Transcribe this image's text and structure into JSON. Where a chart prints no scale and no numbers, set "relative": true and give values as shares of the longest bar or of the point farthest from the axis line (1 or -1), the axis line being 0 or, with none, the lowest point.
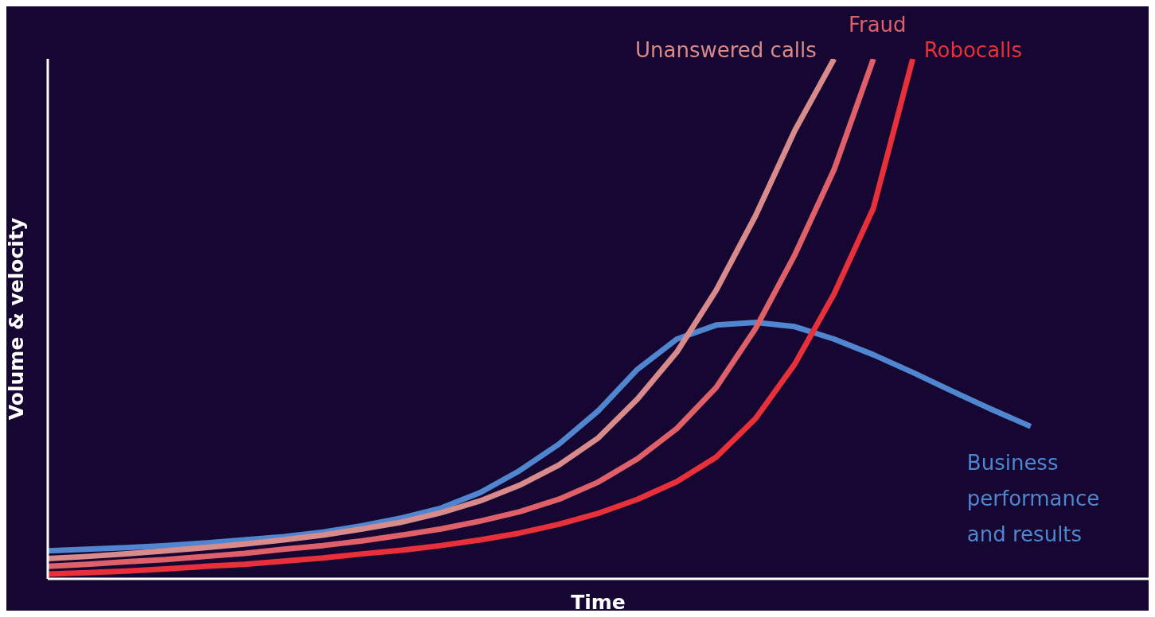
{
  "chart_data": {
    "type": "line",
    "relative": true,
    "xlabel": "Time",
    "ylabel": "Volume & velocity",
    "legend": false,
    "grid": false,
    "marker": "none",
    "line_style": "solid",
    "categories": [
      null,
      null,
      null,
      null,
      null,
      null,
      null,
      null,
      null,
      null,
      null,
      null,
      null,
      null,
      null,
      null,
      null,
      null,
      null,
      null,
      null,
      null,
      null,
      null,
      null,
      null,
      null,
      null,
      null
    ],
    "series": [
      {
        "name": "Business performance and results",
        "color": "#4f86cf",
        "values": [
          0.054,
          0.057,
          0.06,
          0.064,
          0.069,
          0.075,
          0.081,
          0.09,
          0.102,
          0.117,
          0.136,
          0.166,
          0.208,
          0.259,
          0.323,
          0.403,
          0.461,
          0.488,
          0.493,
          0.485,
          0.461,
          0.431,
          0.397,
          0.361,
          0.326,
          0.293,
          null,
          null,
          null
        ]
      },
      {
        "name": "Unanswered calls",
        "color": "#d98a8a",
        "values": [
          0.039,
          0.043,
          0.048,
          0.054,
          0.06,
          0.067,
          0.075,
          0.084,
          0.096,
          0.109,
          0.127,
          0.15,
          0.18,
          0.219,
          0.271,
          0.346,
          0.436,
          0.555,
          0.698,
          0.862,
          1,
          null,
          null,
          null,
          null,
          null,
          null,
          null,
          null
        ]
      },
      {
        "name": "Fraud",
        "color": "#e0606a",
        "values": [
          0.024,
          0.028,
          0.033,
          0.037,
          0.043,
          0.049,
          0.057,
          0.064,
          0.073,
          0.084,
          0.096,
          0.111,
          0.129,
          0.153,
          0.186,
          0.231,
          0.289,
          0.368,
          0.481,
          0.623,
          0.787,
          1,
          null,
          null,
          null,
          null,
          null,
          null,
          null
        ]
      },
      {
        "name": "Robocalls",
        "color": "#e8303a",
        "values": [
          0.009,
          0.012,
          0.015,
          0.019,
          0.024,
          0.028,
          0.034,
          0.04,
          0.048,
          0.055,
          0.064,
          0.075,
          0.088,
          0.105,
          0.126,
          0.153,
          0.187,
          0.234,
          0.308,
          0.413,
          0.548,
          0.713,
          1,
          null,
          null,
          null,
          null,
          null,
          null
        ]
      }
    ]
  }
}
